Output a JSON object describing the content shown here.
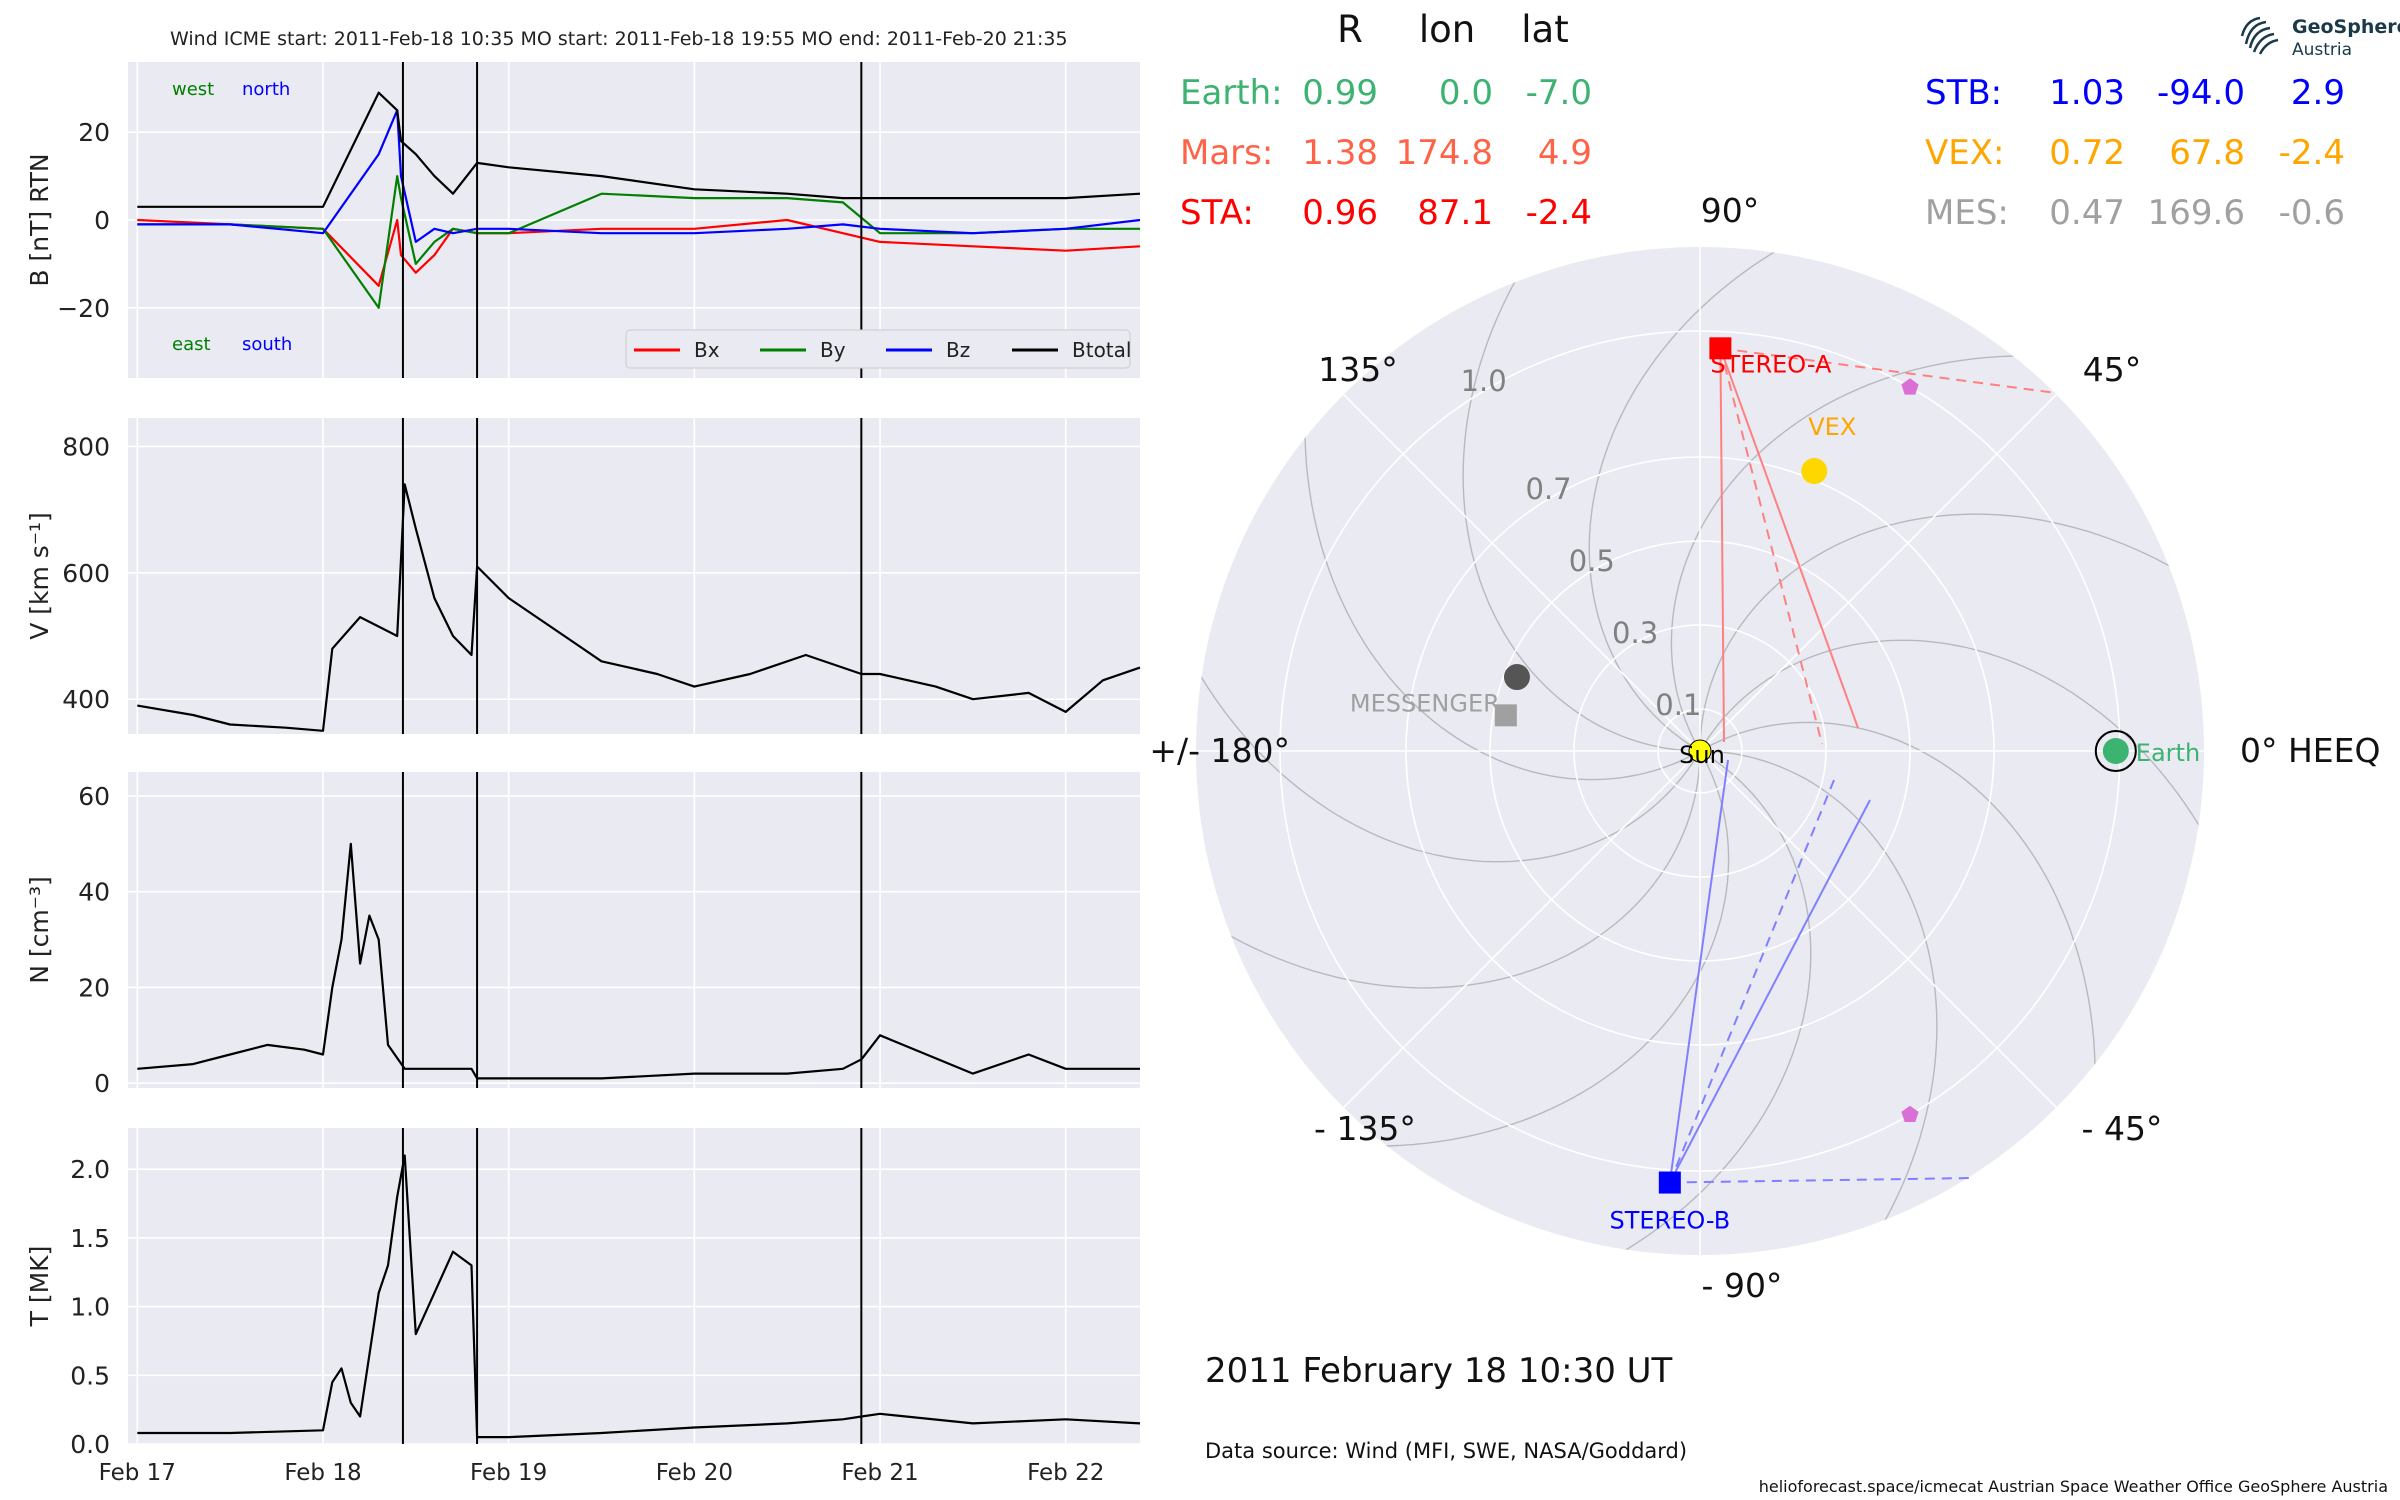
{
  "title": "Wind    ICME start: 2011-Feb-18 10:35   MO start: 2011-Feb-18 19:55   MO end: 2011-Feb-20 21:35",
  "date_label": "2011 February 18  10:30 UT",
  "data_source": "Data source: Wind (MFI, SWE, NASA/Goddard)",
  "footer": "helioforecast.space/icmecat   Austrian Space Weather Office   GeoSphere Austria",
  "logo": {
    "line1": "GeoSphere",
    "line2": "Austria"
  },
  "colors": {
    "bx": "#ff0000",
    "by": "#008000",
    "bz": "#0000ff",
    "bt": "#000000",
    "panel_bg": "#eaeaf2",
    "earth": "#3cb371",
    "mars": "#ff6347",
    "sta": "#ff0000",
    "stb": "#0000ff",
    "vex": "#ffa500",
    "mes": "#a0a0a0"
  },
  "chart_data": [
    {
      "type": "line",
      "panel": "magnetic_field",
      "ylabel": "B [nT] RTN",
      "ylim": [
        -36,
        36
      ],
      "yticks": [
        "20",
        "0",
        "−20"
      ],
      "yticks_values": [
        20,
        0,
        -20
      ],
      "corner_labels": {
        "top_left": "west",
        "top_right": "north",
        "bottom_left": "east",
        "bottom_right": "south"
      },
      "legend": [
        "Bx",
        "By",
        "Bz",
        "Btotal"
      ],
      "legend_position": "lower-right",
      "series": [
        {
          "name": "Bx",
          "x": [
            17.0,
            17.5,
            18.0,
            18.3,
            18.4,
            18.42,
            18.5,
            18.6,
            18.7,
            18.83,
            19.0,
            19.5,
            20.0,
            20.5,
            20.8,
            21.0,
            21.5,
            22.0,
            22.4
          ],
          "y": [
            0,
            -1,
            -2,
            -15,
            0,
            -8,
            -12,
            -8,
            -2,
            -3,
            -3,
            -2,
            -2,
            0,
            -3,
            -5,
            -6,
            -7,
            -6
          ]
        },
        {
          "name": "By",
          "x": [
            17.0,
            17.5,
            18.0,
            18.3,
            18.4,
            18.42,
            18.5,
            18.6,
            18.7,
            18.83,
            19.0,
            19.5,
            20.0,
            20.5,
            20.8,
            21.0,
            21.5,
            22.0,
            22.4
          ],
          "y": [
            -1,
            -1,
            -2,
            -20,
            10,
            5,
            -10,
            -5,
            -2,
            -3,
            -3,
            6,
            5,
            5,
            4,
            -3,
            -3,
            -2,
            -2
          ]
        },
        {
          "name": "Bz",
          "x": [
            17.0,
            17.5,
            18.0,
            18.3,
            18.4,
            18.42,
            18.5,
            18.6,
            18.7,
            18.83,
            19.0,
            19.5,
            20.0,
            20.5,
            20.8,
            21.0,
            21.5,
            22.0,
            22.4
          ],
          "y": [
            -1,
            -1,
            -3,
            15,
            25,
            10,
            -5,
            -2,
            -3,
            -2,
            -2,
            -3,
            -3,
            -2,
            -1,
            -2,
            -3,
            -2,
            0
          ]
        },
        {
          "name": "Btotal",
          "x": [
            17.0,
            17.5,
            18.0,
            18.3,
            18.4,
            18.42,
            18.5,
            18.6,
            18.7,
            18.83,
            19.0,
            19.5,
            20.0,
            20.5,
            20.8,
            21.0,
            21.5,
            22.0,
            22.4
          ],
          "y": [
            3,
            3,
            3,
            29,
            25,
            18,
            15,
            10,
            6,
            13,
            12,
            10,
            7,
            6,
            5,
            5,
            5,
            5,
            6
          ]
        }
      ]
    },
    {
      "type": "line",
      "panel": "speed",
      "ylabel": "V [km s⁻¹]",
      "ylim": [
        345,
        845
      ],
      "yticks": [
        "800",
        "600",
        "400"
      ],
      "yticks_values": [
        800,
        600,
        400
      ],
      "series": [
        {
          "name": "V",
          "x": [
            17.0,
            17.3,
            17.5,
            17.8,
            18.0,
            18.05,
            18.2,
            18.4,
            18.44,
            18.5,
            18.6,
            18.7,
            18.8,
            18.83,
            19.0,
            19.3,
            19.5,
            19.8,
            20.0,
            20.3,
            20.6,
            20.9,
            21.0,
            21.3,
            21.5,
            21.8,
            22.0,
            22.2,
            22.4
          ],
          "y": [
            390,
            375,
            360,
            355,
            350,
            480,
            530,
            500,
            740,
            670,
            560,
            500,
            470,
            610,
            560,
            500,
            460,
            440,
            420,
            440,
            470,
            440,
            440,
            420,
            400,
            410,
            380,
            430,
            450
          ]
        }
      ]
    },
    {
      "type": "line",
      "panel": "density",
      "ylabel": "N [cm⁻³]",
      "ylim": [
        -1,
        65
      ],
      "yticks": [
        "60",
        "40",
        "20",
        "0"
      ],
      "yticks_values": [
        60,
        40,
        20,
        0
      ],
      "series": [
        {
          "name": "N",
          "x": [
            17.0,
            17.3,
            17.5,
            17.7,
            17.9,
            18.0,
            18.05,
            18.1,
            18.15,
            18.2,
            18.25,
            18.3,
            18.35,
            18.44,
            18.5,
            18.8,
            18.83,
            19.0,
            19.5,
            20.0,
            20.5,
            20.8,
            20.9,
            21.0,
            21.5,
            21.8,
            22.0,
            22.4
          ],
          "y": [
            3,
            4,
            6,
            8,
            7,
            6,
            20,
            30,
            50,
            25,
            35,
            30,
            8,
            3,
            3,
            3,
            1,
            1,
            1,
            2,
            2,
            3,
            5,
            10,
            2,
            6,
            3,
            3
          ]
        }
      ]
    },
    {
      "type": "line",
      "panel": "temperature",
      "ylabel": "T [MK]",
      "ylim": [
        0,
        2.3
      ],
      "yticks": [
        "2.0",
        "1.5",
        "1.0",
        "0.5",
        "0.0"
      ],
      "yticks_values": [
        2.0,
        1.5,
        1.0,
        0.5,
        0.0
      ],
      "x_ticks": [
        "Feb 17",
        "Feb 18",
        "Feb 19",
        "Feb 20",
        "Feb 21",
        "Feb 22"
      ],
      "x_ticks_values": [
        17,
        18,
        19,
        20,
        21,
        22
      ],
      "xlim": [
        16.95,
        22.4
      ],
      "series": [
        {
          "name": "T",
          "x": [
            17.0,
            17.5,
            18.0,
            18.05,
            18.1,
            18.15,
            18.2,
            18.3,
            18.35,
            18.4,
            18.44,
            18.5,
            18.6,
            18.7,
            18.8,
            18.83,
            19.0,
            19.5,
            20.0,
            20.5,
            20.8,
            20.9,
            21.0,
            21.5,
            22.0,
            22.4
          ],
          "y": [
            0.08,
            0.08,
            0.1,
            0.45,
            0.55,
            0.3,
            0.2,
            1.1,
            1.3,
            1.8,
            2.1,
            0.8,
            1.1,
            1.4,
            1.3,
            0.05,
            0.05,
            0.08,
            0.12,
            0.15,
            0.18,
            0.2,
            0.22,
            0.15,
            0.18,
            0.15
          ]
        }
      ]
    },
    {
      "type": "polar",
      "panel": "planet_positions",
      "headers": [
        "R",
        "lon",
        "lat"
      ],
      "r_ticks": [
        "0.1",
        "0.3",
        "0.5",
        "0.7",
        "1.0"
      ],
      "r_ticks_values": [
        0.1,
        0.3,
        0.5,
        0.7,
        1.0
      ],
      "angle_labels": [
        "0° HEEQ",
        "45°",
        "90°",
        "135°",
        "+/- 180°",
        "- 135°",
        "- 90°",
        "- 45°"
      ],
      "table_left": [
        {
          "name": "Earth:",
          "R": "0.99",
          "lon": "0.0",
          "lat": "-7.0",
          "color_key": "earth"
        },
        {
          "name": "Mars:",
          "R": "1.38",
          "lon": "174.8",
          "lat": "4.9",
          "color_key": "mars"
        },
        {
          "name": "STA:",
          "R": "0.96",
          "lon": "87.1",
          "lat": "-2.4",
          "color_key": "sta"
        }
      ],
      "table_right": [
        {
          "name": "STB:",
          "R": "1.03",
          "lon": "-94.0",
          "lat": "2.9",
          "color_key": "stb"
        },
        {
          "name": "VEX:",
          "R": "0.72",
          "lon": "67.8",
          "lat": "-2.4",
          "color_key": "vex"
        },
        {
          "name": "MES:",
          "R": "0.47",
          "lon": "169.6",
          "lat": "-0.6",
          "color_key": "mes"
        }
      ],
      "bodies": [
        {
          "label": "Sun",
          "r": 0,
          "lon": 0,
          "marker": "circle",
          "color": "#ffff00"
        },
        {
          "label": "Earth",
          "r": 0.99,
          "lon": 0.0,
          "marker": "circle",
          "color": "#3cb371"
        },
        {
          "label": "STEREO-A",
          "r": 0.96,
          "lon": 87.1,
          "marker": "square",
          "color": "#ff0000"
        },
        {
          "label": "STEREO-B",
          "r": 1.03,
          "lon": -94.0,
          "marker": "square",
          "color": "#0000ff"
        },
        {
          "label": "VEX",
          "r": 0.72,
          "lon": 67.8,
          "marker": "circle",
          "color": "#ffd700"
        },
        {
          "label": "MESSENGER",
          "r": 0.47,
          "lon": 169.6,
          "marker": "square",
          "color": "#a0a0a0"
        },
        {
          "label": "",
          "r": 0.47,
          "lon": 158.0,
          "marker": "circle",
          "color": "#555555"
        },
        {
          "label": "",
          "r": 1.0,
          "lon": 60.0,
          "marker": "pentagon",
          "color": "#da70d6"
        },
        {
          "label": "",
          "r": 1.0,
          "lon": -60.0,
          "marker": "pentagon",
          "color": "#da70d6"
        }
      ]
    }
  ]
}
